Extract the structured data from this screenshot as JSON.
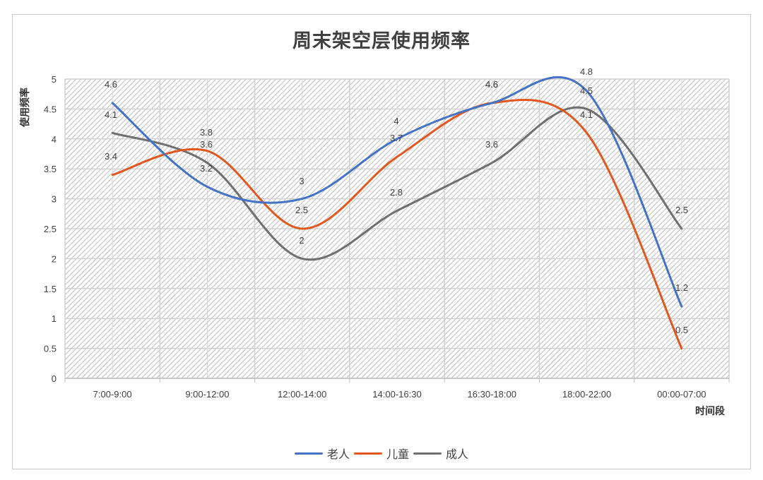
{
  "chart_data": {
    "type": "line",
    "title": "周末架空层使用频率",
    "xlabel": "时间段",
    "ylabel": "使用频率",
    "categories": [
      "7:00-9:00",
      "9:00-12:00",
      "12:00-14:00",
      "14:00-16:30",
      "16:30-18:00",
      "18:00-22:00",
      "00:00-07:00"
    ],
    "series": [
      {
        "name": "老人",
        "color": "#4472c4",
        "values": [
          4.6,
          3.2,
          3,
          4,
          4.6,
          4.8,
          1.2
        ]
      },
      {
        "name": "儿童",
        "color": "#e0581f",
        "values": [
          3.4,
          3.8,
          2.5,
          3.7,
          4.6,
          4.1,
          0.5
        ]
      },
      {
        "name": "成人",
        "color": "#6f6f6f",
        "values": [
          4.1,
          3.6,
          2,
          2.8,
          3.6,
          4.5,
          2.5
        ]
      }
    ],
    "ylim": [
      0,
      5
    ],
    "yticks": [
      "0",
      "0.5",
      "1",
      "1.5",
      "2",
      "2.5",
      "3",
      "3.5",
      "4",
      "4.5",
      "5"
    ],
    "grid": true,
    "smooth": true,
    "legend_position": "bottom",
    "plot_background": "diagonal-hatch"
  },
  "labels": {
    "series0": [
      "4.6",
      "3.2",
      "3",
      "4",
      "4.6",
      "4.8",
      "1.2"
    ],
    "series1": [
      "3.4",
      "3.8",
      "2.5",
      "3.7",
      "4.6",
      "4.1",
      "0.5"
    ],
    "series2": [
      "4.1",
      "3.6",
      "2",
      "2.8",
      "3.6",
      "4.5",
      "2.5"
    ]
  }
}
